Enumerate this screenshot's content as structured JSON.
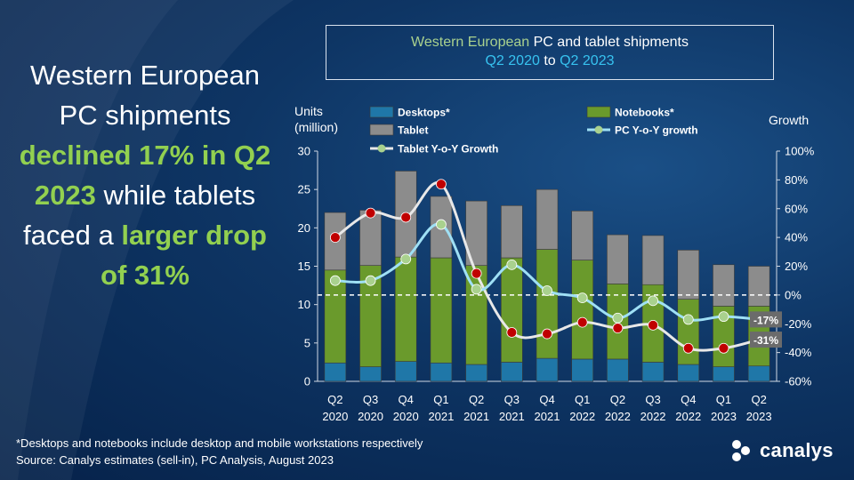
{
  "headline": {
    "part1": "Western European PC shipments ",
    "highlight1": "declined 17% in Q2 2023",
    "part2": " while tablets faced a ",
    "highlight2": "larger drop of 31%"
  },
  "title_box": {
    "line1_green": "Western European",
    "line1_white": " PC and tablet shipments",
    "line2_blue1": "Q2 2020",
    "line2_white": " to ",
    "line2_blue2": "Q2 2023"
  },
  "footnote": {
    "line1": "*Desktops and notebooks include desktop and mobile workstations respectively",
    "line2": "Source: Canalys estimates (sell-in), PC Analysis, August 2023"
  },
  "logo": {
    "text": "canalys",
    "icon": "canalys-logo-icon"
  },
  "colors": {
    "desktops": "#1f77a8",
    "notebooks": "#6a9a2c",
    "tablet": "#8c8c8c",
    "pc_growth": "#9fe0f5",
    "tablet_growth": "#e8e8e8",
    "pc_marker": "#c00000",
    "tablet_marker": "#a9d18e",
    "highlight": "#92d050"
  },
  "chart_data": {
    "type": "bar",
    "stacked": true,
    "categories": [
      "Q2 2020",
      "Q3 2020",
      "Q4 2020",
      "Q1 2021",
      "Q2 2021",
      "Q3 2021",
      "Q4 2021",
      "Q1 2022",
      "Q2 2022",
      "Q3 2022",
      "Q4 2022",
      "Q1 2023",
      "Q2 2023"
    ],
    "category_lines": [
      [
        "Q2",
        "2020"
      ],
      [
        "Q3",
        "2020"
      ],
      [
        "Q4",
        "2020"
      ],
      [
        "Q1",
        "2021"
      ],
      [
        "Q2",
        "2021"
      ],
      [
        "Q3",
        "2021"
      ],
      [
        "Q4",
        "2021"
      ],
      [
        "Q1",
        "2022"
      ],
      [
        "Q2",
        "2022"
      ],
      [
        "Q3",
        "2022"
      ],
      [
        "Q4",
        "2022"
      ],
      [
        "Q1",
        "2023"
      ],
      [
        "Q2",
        "2023"
      ]
    ],
    "series": [
      {
        "name": "Desktops*",
        "values": [
          2.4,
          1.9,
          2.6,
          2.4,
          2.2,
          2.5,
          3.0,
          2.9,
          2.9,
          2.5,
          2.2,
          1.9,
          2.0
        ]
      },
      {
        "name": "Notebooks*",
        "values": [
          12.1,
          13.2,
          13.6,
          13.7,
          12.9,
          13.6,
          14.2,
          12.9,
          9.8,
          10.1,
          8.5,
          7.9,
          7.8
        ]
      },
      {
        "name": "Tablet",
        "values": [
          7.5,
          7.2,
          11.2,
          8.0,
          8.4,
          6.8,
          7.8,
          6.4,
          6.4,
          6.4,
          6.4,
          5.4,
          5.2
        ]
      }
    ],
    "growth_series": [
      {
        "name": "PC Y-o-Y growth",
        "values": [
          10,
          10,
          25,
          49,
          4,
          21,
          3,
          -2,
          -16,
          -4,
          -17,
          -15,
          -17
        ]
      },
      {
        "name": "Tablet Y-o-Y Growth",
        "values": [
          40,
          57,
          54,
          77,
          15,
          -26,
          -27,
          -19,
          -23,
          -21,
          -37,
          -37,
          -31
        ]
      }
    ],
    "labels": [
      "-17%",
      "-31%"
    ],
    "ylabel": "Units (million)",
    "ylabel_lines": [
      "Units",
      "(million)"
    ],
    "y2label": "Growth",
    "ylim": [
      0,
      30
    ],
    "y2lim": [
      -60,
      100
    ],
    "yticks": [
      "0",
      "5",
      "10",
      "15",
      "20",
      "25",
      "30"
    ],
    "y2ticks": [
      "-60%",
      "-40%",
      "-20%",
      "0%",
      "20%",
      "40%",
      "60%",
      "80%",
      "100%"
    ],
    "legend_position": "top"
  }
}
